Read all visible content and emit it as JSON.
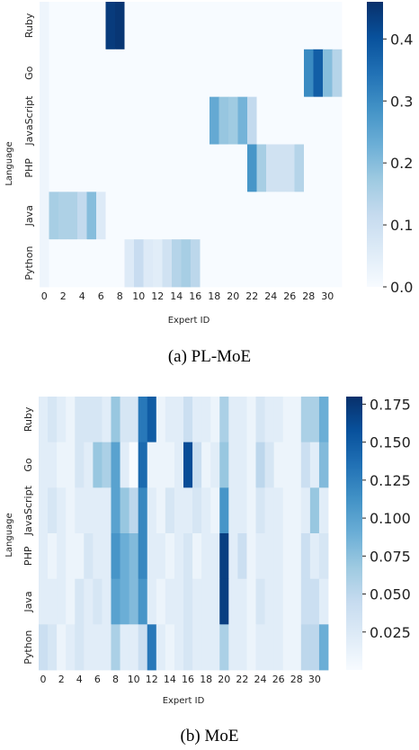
{
  "colors": {
    "low": "#f7fbff",
    "high": "#08306b",
    "text": "#222222"
  },
  "chart_data": [
    {
      "type": "heatmap",
      "caption": "(a)  PL-MoE",
      "xlabel": "Expert ID",
      "ylabel": "Language",
      "y_categories": [
        "Ruby",
        "Go",
        "JavaScript",
        "PHP",
        "Java",
        "Python"
      ],
      "x_categories": [
        0,
        1,
        2,
        3,
        4,
        5,
        6,
        7,
        8,
        9,
        10,
        11,
        12,
        13,
        14,
        15,
        16,
        17,
        18,
        19,
        20,
        21,
        22,
        23,
        24,
        25,
        26,
        27,
        28,
        29,
        30,
        31
      ],
      "x_tick_labels": [
        "0",
        "2",
        "4",
        "6",
        "8",
        "10",
        "12",
        "14",
        "16",
        "18",
        "20",
        "22",
        "24",
        "26",
        "28",
        "30"
      ],
      "colorbar": {
        "min": 0.0,
        "max": 0.46,
        "ticks": [
          0.0,
          0.1,
          0.2,
          0.3,
          0.4
        ],
        "tick_labels": [
          "0.0",
          "0.1",
          "0.2",
          "0.3",
          "0.4"
        ]
      },
      "values": [
        [
          0.02,
          0,
          0,
          0,
          0,
          0,
          0,
          0.44,
          0.45,
          0,
          0,
          0,
          0,
          0,
          0,
          0,
          0,
          0,
          0,
          0,
          0,
          0,
          0,
          0,
          0,
          0,
          0,
          0,
          0,
          0,
          0,
          0
        ],
        [
          0.02,
          0,
          0,
          0,
          0,
          0,
          0,
          0,
          0,
          0,
          0,
          0,
          0,
          0,
          0,
          0,
          0,
          0,
          0,
          0,
          0,
          0,
          0,
          0,
          0,
          0,
          0,
          0,
          0.3,
          0.38,
          0.2,
          0.14
        ],
        [
          0.02,
          0,
          0,
          0,
          0,
          0,
          0,
          0,
          0,
          0,
          0,
          0,
          0,
          0,
          0,
          0,
          0,
          0,
          0.24,
          0.18,
          0.17,
          0.22,
          0.12,
          0,
          0,
          0,
          0,
          0,
          0,
          0,
          0,
          0
        ],
        [
          0.02,
          0,
          0,
          0,
          0,
          0,
          0,
          0,
          0,
          0,
          0,
          0,
          0,
          0,
          0,
          0,
          0,
          0,
          0,
          0,
          0,
          0,
          0.28,
          0.16,
          0.09,
          0.09,
          0.09,
          0.14,
          0,
          0,
          0,
          0
        ],
        [
          0.02,
          0.16,
          0.15,
          0.15,
          0.12,
          0.2,
          0.06,
          0,
          0,
          0,
          0,
          0,
          0,
          0,
          0,
          0,
          0,
          0,
          0,
          0,
          0,
          0,
          0,
          0,
          0,
          0,
          0,
          0,
          0,
          0,
          0,
          0
        ],
        [
          0.02,
          0,
          0,
          0,
          0,
          0,
          0,
          0,
          0,
          0.06,
          0.11,
          0.06,
          0.05,
          0.09,
          0.14,
          0.16,
          0.13,
          0,
          0,
          0,
          0,
          0,
          0,
          0,
          0,
          0,
          0,
          0,
          0,
          0,
          0,
          0
        ]
      ]
    },
    {
      "type": "heatmap",
      "caption": "(b)  MoE",
      "xlabel": "Expert ID",
      "ylabel": "Language",
      "y_categories": [
        "Ruby",
        "Go",
        "JavaScript",
        "PHP",
        "Java",
        "Python"
      ],
      "x_categories": [
        0,
        1,
        2,
        3,
        4,
        5,
        6,
        7,
        8,
        9,
        10,
        11,
        12,
        13,
        14,
        15,
        16,
        17,
        18,
        19,
        20,
        21,
        22,
        23,
        24,
        25,
        26,
        27,
        28,
        29,
        30,
        31
      ],
      "x_tick_labels": [
        "0",
        "2",
        "4",
        "6",
        "8",
        "10",
        "12",
        "14",
        "16",
        "18",
        "20",
        "22",
        "24",
        "26",
        "28",
        "30"
      ],
      "colorbar": {
        "min": 0.0,
        "max": 0.18,
        "ticks": [
          0.025,
          0.05,
          0.075,
          0.1,
          0.125,
          0.15,
          0.175
        ],
        "tick_labels": [
          "0.025",
          "0.050",
          "0.075",
          "0.100",
          "0.125",
          "0.150",
          "0.175"
        ]
      },
      "values": [
        [
          0.02,
          0.03,
          0.02,
          0.01,
          0.03,
          0.03,
          0.03,
          0.02,
          0.07,
          0.03,
          0.03,
          0.13,
          0.15,
          0.01,
          0.02,
          0.02,
          0.04,
          0.02,
          0.02,
          0.01,
          0.06,
          0.02,
          0.02,
          0.01,
          0.03,
          0.02,
          0.02,
          0.01,
          0.01,
          0.06,
          0.06,
          0.09
        ],
        [
          0.02,
          0.02,
          0.01,
          0.01,
          0.03,
          0.02,
          0.07,
          0.06,
          0.1,
          0.02,
          0.0,
          0.14,
          0.01,
          0.01,
          0.01,
          0.02,
          0.16,
          0.04,
          0.01,
          0.02,
          0.07,
          0.02,
          0.02,
          0.01,
          0.05,
          0.03,
          0.01,
          0.01,
          0.01,
          0.04,
          0.02,
          0.08
        ],
        [
          0.02,
          0.03,
          0.02,
          0.01,
          0.02,
          0.02,
          0.02,
          0.02,
          0.1,
          0.07,
          0.05,
          0.12,
          0.02,
          0.01,
          0.03,
          0.02,
          0.02,
          0.03,
          0.02,
          0.01,
          0.11,
          0.02,
          0.02,
          0.01,
          0.03,
          0.02,
          0.02,
          0.01,
          0.01,
          0.02,
          0.07,
          0.02
        ],
        [
          0.02,
          0.01,
          0.02,
          0.01,
          0.01,
          0.03,
          0.02,
          0.02,
          0.11,
          0.09,
          0.08,
          0.12,
          0.02,
          0.02,
          0.01,
          0.02,
          0.03,
          0.01,
          0.02,
          0.02,
          0.17,
          0.02,
          0.04,
          0.01,
          0.02,
          0.02,
          0.02,
          0.01,
          0.01,
          0.04,
          0.02,
          0.03
        ],
        [
          0.02,
          0.02,
          0.02,
          0.01,
          0.03,
          0.02,
          0.03,
          0.02,
          0.1,
          0.09,
          0.08,
          0.11,
          0.02,
          0.01,
          0.02,
          0.02,
          0.03,
          0.02,
          0.02,
          0.02,
          0.17,
          0.02,
          0.02,
          0.01,
          0.03,
          0.02,
          0.02,
          0.01,
          0.01,
          0.04,
          0.04,
          0.02
        ],
        [
          0.04,
          0.03,
          0.01,
          0.02,
          0.03,
          0.02,
          0.02,
          0.02,
          0.06,
          0.02,
          0.02,
          0.04,
          0.13,
          0.02,
          0.01,
          0.02,
          0.03,
          0.02,
          0.02,
          0.02,
          0.06,
          0.02,
          0.02,
          0.01,
          0.02,
          0.02,
          0.02,
          0.01,
          0.01,
          0.05,
          0.05,
          0.09
        ]
      ]
    }
  ]
}
